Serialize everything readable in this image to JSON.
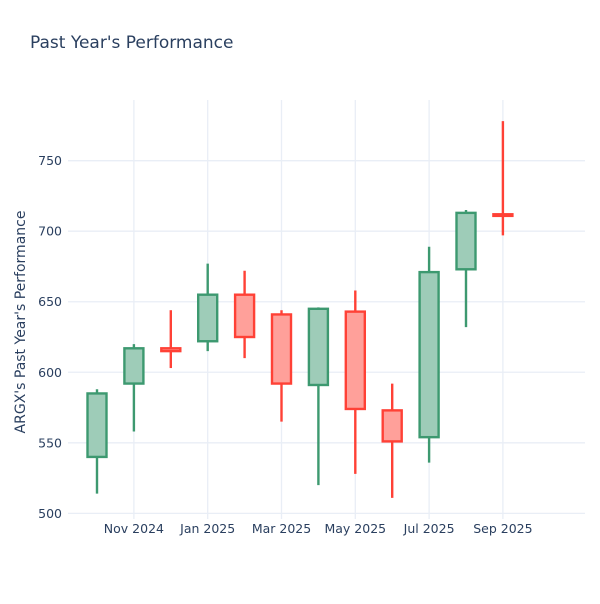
{
  "chart_data": {
    "type": "candlestick",
    "title": "Past Year's Performance",
    "ylabel": "ARGX's Past Year's Performance",
    "xlabel": "",
    "x_tick_labels": [
      "Nov 2024",
      "Jan 2025",
      "Mar 2025",
      "May 2025",
      "Jul 2025",
      "Sep 2025"
    ],
    "y_ticks": [
      500,
      550,
      600,
      650,
      700,
      750
    ],
    "ylim": [
      496,
      793
    ],
    "grid": true,
    "legend": "none",
    "colors": {
      "increasing_line": "#3D9970",
      "increasing_fill": "#9ECCB8",
      "decreasing_line": "#FF4136",
      "decreasing_fill": "#FFA09A",
      "gridline": "#E9EEF6",
      "text": "#2a3f5f",
      "background": "#ffffff"
    },
    "candles": [
      {
        "month": "Oct 2024",
        "open": 540,
        "high": 588,
        "low": 514,
        "close": 585
      },
      {
        "month": "Nov 2024",
        "open": 592,
        "high": 620,
        "low": 558,
        "close": 617
      },
      {
        "month": "Dec 2024",
        "open": 617,
        "high": 644,
        "low": 603,
        "close": 615
      },
      {
        "month": "Jan 2025",
        "open": 622,
        "high": 677,
        "low": 615,
        "close": 655
      },
      {
        "month": "Feb 2025",
        "open": 655,
        "high": 672,
        "low": 610,
        "close": 625
      },
      {
        "month": "Mar 2025",
        "open": 641,
        "high": 644,
        "low": 565,
        "close": 592
      },
      {
        "month": "Apr 2025",
        "open": 591,
        "high": 646,
        "low": 520,
        "close": 645
      },
      {
        "month": "May 2025",
        "open": 643,
        "high": 658,
        "low": 528,
        "close": 574
      },
      {
        "month": "Jun 2025",
        "open": 573,
        "high": 592,
        "low": 511,
        "close": 551
      },
      {
        "month": "Jul 2025",
        "open": 554,
        "high": 689,
        "low": 536,
        "close": 671
      },
      {
        "month": "Aug 2025",
        "open": 673,
        "high": 715,
        "low": 632,
        "close": 713
      },
      {
        "month": "Sep 2025",
        "open": 712,
        "high": 778,
        "low": 697,
        "close": 711
      }
    ]
  }
}
